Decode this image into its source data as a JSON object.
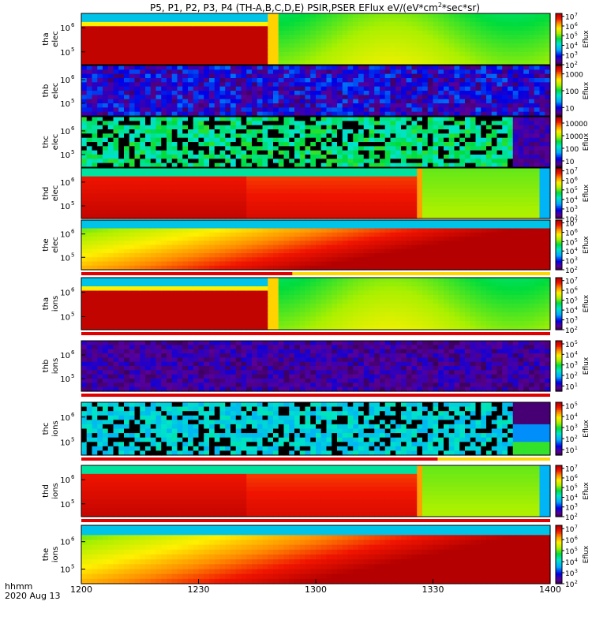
{
  "chart_data": {
    "type": "heatmap",
    "title": "P5, P1, P2, P3, P4 (TH-A,B,C,D,E) PSIR,PSER EFlux eV/(eV*cm",
    "title_sup": "2",
    "title_end": "*sec*sr)",
    "x_ticks": [
      "1200",
      "1230",
      "1300",
      "1330",
      "1400"
    ],
    "x_label": "hhmm",
    "date_label": "2020 Aug 13",
    "colorbar_label": "Eflux",
    "panels": [
      {
        "name": "tha-elec",
        "label1": "tha",
        "label2": "elec",
        "kind": "steady",
        "y_ticks": [
          "6",
          "5"
        ],
        "cb_ticks": [
          "7",
          "6",
          "5",
          "4",
          "3",
          "2"
        ],
        "cb_style": "exp",
        "cb_min": 2,
        "cb_max": 7.3,
        "bar_below": false,
        "gap_frac": 0.39
      },
      {
        "name": "thb-elec",
        "label1": "thb",
        "label2": "elec",
        "kind": "noise-blue",
        "y_ticks": [
          "6",
          "5"
        ],
        "cb_ticks": [
          "1000",
          "100",
          "10"
        ],
        "cb_style": "num",
        "cb_min": 0.5,
        "cb_max": 3.5,
        "bar_below": false,
        "gap_frac": 1.0
      },
      {
        "name": "thc-elec",
        "label1": "thc",
        "label2": "elec",
        "kind": "noise-green",
        "y_ticks": [
          "6",
          "5"
        ],
        "cb_ticks": [
          "10000",
          "1000",
          "100",
          "10"
        ],
        "cb_style": "num",
        "cb_min": 0.5,
        "cb_max": 4.5,
        "bar_below": false,
        "gap_frac": 0.92
      },
      {
        "name": "thd-elec",
        "label1": "thd",
        "label2": "elec",
        "kind": "red-edge",
        "y_ticks": [
          "6",
          "5"
        ],
        "cb_ticks": [
          "7",
          "6",
          "5",
          "4",
          "3",
          "2"
        ],
        "cb_style": "exp",
        "cb_min": 2,
        "cb_max": 7.3,
        "bar_below": false,
        "gap_frac": 0.71
      },
      {
        "name": "the-elec",
        "label1": "the",
        "label2": "elec",
        "kind": "ramp",
        "y_ticks": [
          "6",
          "5"
        ],
        "cb_ticks": [
          "7",
          "6",
          "5",
          "4",
          "3",
          "2"
        ],
        "cb_style": "exp",
        "cb_min": 2,
        "cb_max": 7.3,
        "bar_below": true,
        "bar_frac": 0.45
      },
      {
        "name": "tha-ions",
        "label1": "tha",
        "label2": "ions",
        "kind": "steady",
        "y_ticks": [
          "6",
          "5"
        ],
        "cb_ticks": [
          "7",
          "6",
          "5",
          "4",
          "3",
          "2"
        ],
        "cb_style": "exp",
        "cb_min": 2,
        "cb_max": 7.3,
        "bar_below": true,
        "bar_frac": 1.0
      },
      {
        "name": "thb-ions",
        "label1": "thb",
        "label2": "ions",
        "kind": "noise-purple",
        "y_ticks": [
          "6",
          "5"
        ],
        "cb_ticks": [
          "5",
          "4",
          "3",
          "2",
          "1"
        ],
        "cb_style": "exp",
        "cb_min": 0.5,
        "cb_max": 5.3,
        "bar_below": true,
        "bar_frac": 1.0
      },
      {
        "name": "thc-ions",
        "label1": "thc",
        "label2": "ions",
        "kind": "noise-cyan",
        "y_ticks": [
          "6",
          "5"
        ],
        "cb_ticks": [
          "5",
          "4",
          "3",
          "2",
          "1"
        ],
        "cb_style": "exp",
        "cb_min": 0.5,
        "cb_max": 5.3,
        "bar_below": true,
        "bar_frac": 0.76
      },
      {
        "name": "thd-ions",
        "label1": "thd",
        "label2": "ions",
        "kind": "red-edge",
        "y_ticks": [
          "6",
          "5"
        ],
        "cb_ticks": [
          "7",
          "6",
          "5",
          "4",
          "3",
          "2"
        ],
        "cb_style": "exp",
        "cb_min": 2,
        "cb_max": 7.3,
        "bar_below": true,
        "bar_frac": 1.0
      },
      {
        "name": "the-ions",
        "label1": "the",
        "label2": "ions",
        "kind": "ramp",
        "y_ticks": [
          "6",
          "5"
        ],
        "cb_ticks": [
          "7",
          "6",
          "5",
          "4",
          "3",
          "2"
        ],
        "cb_style": "exp",
        "cb_min": 2,
        "cb_max": 7.3,
        "bar_below": false
      }
    ]
  }
}
